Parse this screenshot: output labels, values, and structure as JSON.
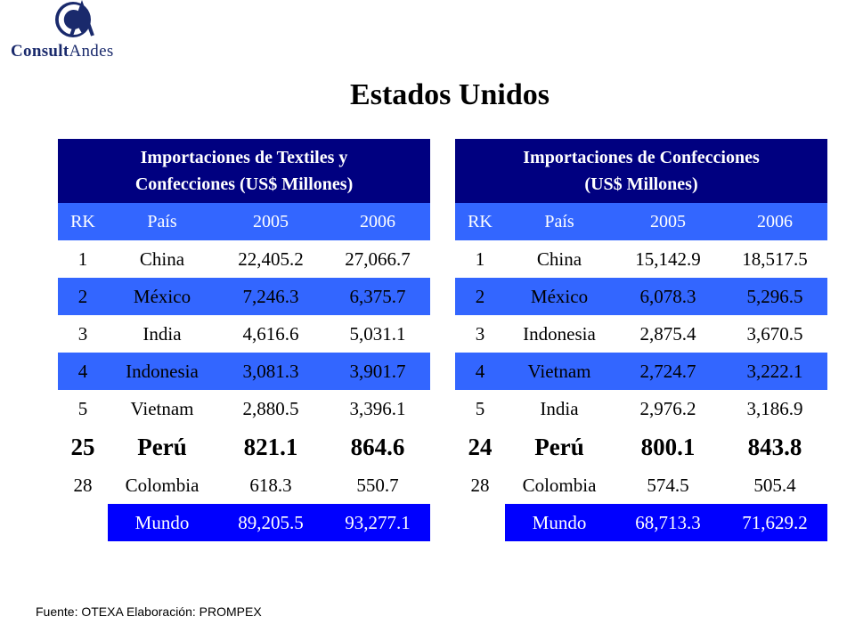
{
  "logo": {
    "text_a": "Consult",
    "text_b": "Andes"
  },
  "title": "Estados Unidos",
  "table1": {
    "header": [
      "Importaciones de Textiles y",
      "Confecciones (US$ Millones)"
    ],
    "columns": [
      "RK",
      "País",
      "2005",
      "2006"
    ],
    "rows": [
      [
        "1",
        "China",
        "22,405.2",
        "27,066.7"
      ],
      [
        "2",
        "México",
        "7,246.3",
        "6,375.7"
      ],
      [
        "3",
        "India",
        "4,616.6",
        "5,031.1"
      ],
      [
        "4",
        "Indonesia",
        "3,081.3",
        "3,901.7"
      ],
      [
        "5",
        "Vietnam",
        "2,880.5",
        "3,396.1"
      ],
      [
        "25",
        "Perú",
        "821.1",
        "864.6"
      ],
      [
        "28",
        "Colombia",
        "618.3",
        "550.7"
      ],
      [
        "",
        "Mundo",
        "89,205.5",
        "93,277.1"
      ]
    ]
  },
  "table2": {
    "header": [
      "Importaciones de Confecciones",
      "(US$ Millones)"
    ],
    "columns": [
      "RK",
      "País",
      "2005",
      "2006"
    ],
    "rows": [
      [
        "1",
        "China",
        "15,142.9",
        "18,517.5"
      ],
      [
        "2",
        "México",
        "6,078.3",
        "5,296.5"
      ],
      [
        "3",
        "Indonesia",
        "2,875.4",
        "3,670.5"
      ],
      [
        "4",
        "Vietnam",
        "2,724.7",
        "3,222.1"
      ],
      [
        "5",
        "India",
        "2,976.2",
        "3,186.9"
      ],
      [
        "24",
        "Perú",
        "800.1",
        "843.8"
      ],
      [
        "28",
        "Colombia",
        "574.5",
        "505.4"
      ],
      [
        "",
        "Mundo",
        "68,713.3",
        "71,629.2"
      ]
    ]
  },
  "source": "Fuente: OTEXA  Elaboración: PROMPEX",
  "colors": {
    "header_dark": "#000080",
    "header_row": "#3366ff",
    "mundo_fill": "#0000ff"
  }
}
